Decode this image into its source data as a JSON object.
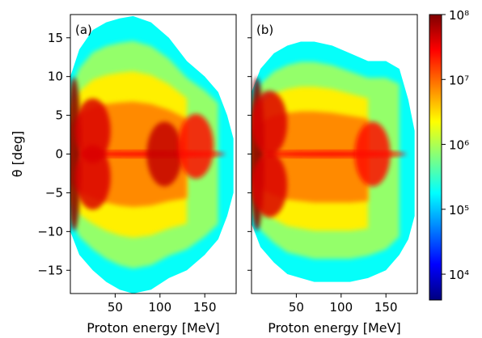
{
  "chart_data": [
    {
      "type": "heatmap",
      "panel_label": "(a)",
      "xlabel": "Proton energy [MeV]",
      "ylabel": "θ [deg]",
      "xlim": [
        0,
        185
      ],
      "ylim": [
        -18,
        18
      ],
      "x_ticks": [
        50,
        100,
        150
      ],
      "y_ticks": [
        -15,
        -10,
        -5,
        0,
        5,
        10,
        15
      ],
      "envelope": {
        "energy_MeV": [
          0,
          10,
          25,
          40,
          55,
          70,
          90,
          110,
          130,
          150,
          165,
          175,
          182
        ],
        "theta_max_deg": [
          10,
          13.5,
          16,
          17,
          17.5,
          17.8,
          17,
          15,
          12,
          10,
          8,
          5,
          2
        ],
        "theta_min_deg": [
          -10,
          -13,
          -15,
          -16.5,
          -17.5,
          -18,
          -17.5,
          -16,
          -15,
          -13,
          -11,
          -8,
          -5
        ]
      },
      "hotspots": [
        {
          "energy_MeV": 4,
          "theta_deg": 0,
          "intensity": 1.0
        },
        {
          "energy_MeV": 25,
          "theta_deg": 3,
          "intensity": 0.8
        },
        {
          "energy_MeV": 25,
          "theta_deg": -3,
          "intensity": 0.8
        },
        {
          "energy_MeV": 105,
          "theta_deg": 0,
          "intensity": 0.85
        },
        {
          "energy_MeV": 140,
          "theta_deg": 1,
          "intensity": 0.7
        }
      ]
    },
    {
      "type": "heatmap",
      "panel_label": "(b)",
      "xlabel": "Proton energy [MeV]",
      "ylabel": "",
      "xlim": [
        0,
        185
      ],
      "ylim": [
        -18,
        18
      ],
      "x_ticks": [
        50,
        100,
        150
      ],
      "y_ticks": [
        -15,
        -10,
        -5,
        0,
        5,
        10,
        15
      ],
      "envelope": {
        "energy_MeV": [
          0,
          10,
          25,
          40,
          55,
          70,
          90,
          110,
          130,
          150,
          165,
          175,
          182
        ],
        "theta_max_deg": [
          8,
          11,
          13,
          14,
          14.5,
          14.5,
          14,
          13,
          12,
          12,
          11,
          7,
          3
        ],
        "theta_min_deg": [
          -9,
          -12,
          -14,
          -15.5,
          -16,
          -16.5,
          -16.5,
          -16.5,
          -16,
          -15,
          -13,
          -11,
          -8
        ]
      },
      "hotspots": [
        {
          "energy_MeV": 6,
          "theta_deg": 0,
          "intensity": 1.0
        },
        {
          "energy_MeV": 20,
          "theta_deg": 4,
          "intensity": 0.8
        },
        {
          "energy_MeV": 20,
          "theta_deg": -4,
          "intensity": 0.8
        },
        {
          "energy_MeV": 135,
          "theta_deg": 0,
          "intensity": 0.7
        }
      ]
    }
  ],
  "colorbar": {
    "scale": "log",
    "range": [
      4000,
      100000000
    ],
    "tick_values": [
      10000,
      100000,
      1000000,
      10000000,
      100000000
    ],
    "tick_labels": [
      "10⁴",
      "10⁵",
      "10⁶",
      "10⁷",
      "10⁸"
    ],
    "colormap": "jet"
  }
}
